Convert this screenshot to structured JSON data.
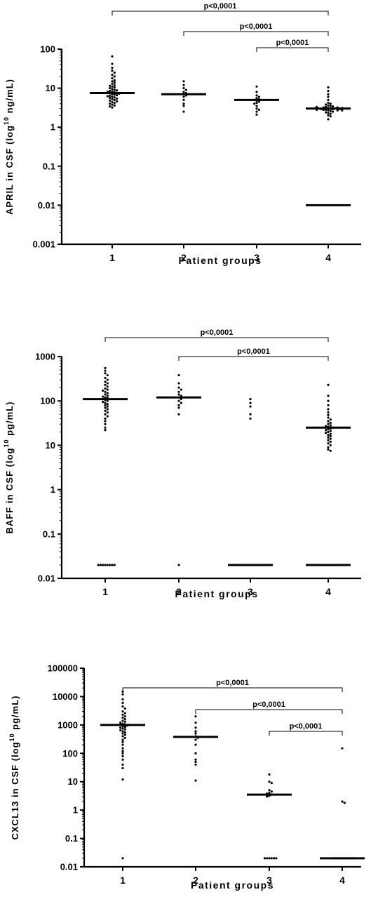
{
  "colors": {
    "ink": "#000000",
    "background": "#ffffff"
  },
  "chart_data": [
    {
      "type": "scatter",
      "title": "",
      "ylabel": "APRIL in CSF (log",
      "ylabel_sup": "10",
      "ylabel_unit": " ng/mL)",
      "xlabel": "Patient groups",
      "yscale": "log",
      "ylim": [
        0.001,
        100
      ],
      "yticks": [
        100,
        10,
        1,
        0.1,
        0.01,
        0.001
      ],
      "ytick_labels": [
        "100",
        "10",
        "1",
        "0.1",
        "0.01",
        "0.001"
      ],
      "categories": [
        "1",
        "2",
        "3",
        "4"
      ],
      "medians": [
        7.5,
        7,
        5,
        3
      ],
      "extra_lines": [
        {
          "group": 4,
          "value": 0.01
        }
      ],
      "groups": [
        {
          "name": "1",
          "values": [
            65,
            42,
            33,
            28,
            25,
            22,
            20,
            18,
            16,
            15,
            14,
            13,
            12,
            11.5,
            11,
            10.5,
            10,
            9.5,
            9,
            8.8,
            8.5,
            8.2,
            8,
            7.8,
            7.6,
            7.4,
            7.2,
            7,
            6.8,
            6.6,
            6.4,
            6.2,
            6,
            5.8,
            5.6,
            5.4,
            5.2,
            5,
            4.8,
            4.6,
            4.4,
            4.2,
            4,
            3.8,
            3.6,
            3.4,
            3.2
          ]
        },
        {
          "name": "2",
          "values": [
            15,
            12,
            10,
            9,
            8,
            7.5,
            7,
            6.5,
            6,
            5,
            4,
            3.5,
            2.5
          ]
        },
        {
          "name": "3",
          "values": [
            11,
            8,
            6.5,
            6,
            5.5,
            5.2,
            5,
            4.8,
            4.5,
            4.2,
            4,
            3.5,
            3,
            2.8,
            2.5,
            2.1
          ]
        },
        {
          "name": "4",
          "values": [
            10.5,
            8.5,
            7,
            6,
            5,
            4.2,
            4,
            3.8,
            3.6,
            3.5,
            3.4,
            3.3,
            3.2,
            3.1,
            3,
            3,
            2.9,
            2.9,
            2.8,
            2.8,
            2.7,
            2.7,
            2.6,
            2.5,
            2.4,
            2.3,
            2.2,
            2,
            1.9,
            1.6,
            3.2,
            3,
            2.9,
            2.8,
            2.7,
            3.1,
            3.3
          ]
        }
      ],
      "comparisons": [
        {
          "from": 1,
          "to": 4,
          "label": "p<0,0001"
        },
        {
          "from": 2,
          "to": 4,
          "label": "p<0,0001"
        },
        {
          "from": 3,
          "to": 4,
          "label": "p<0,0001"
        }
      ]
    },
    {
      "type": "scatter",
      "title": "",
      "ylabel": "BAFF in CSF (log",
      "ylabel_sup": "10",
      "ylabel_unit": " pg/mL)",
      "xlabel": "Patient groups",
      "yscale": "log",
      "ylim": [
        0.01,
        1000
      ],
      "yticks": [
        1000,
        100,
        10,
        1,
        0.1,
        0.01
      ],
      "ytick_labels": [
        "1000",
        "100",
        "10",
        "1",
        "0.1",
        "0.01"
      ],
      "categories": [
        "1",
        "2",
        "3",
        "4"
      ],
      "medians": [
        110,
        120,
        0.02,
        25
      ],
      "extra_lines": [
        {
          "group": 4,
          "value": 0.02
        }
      ],
      "groups": [
        {
          "name": "1",
          "values": [
            550,
            480,
            420,
            380,
            330,
            300,
            270,
            250,
            230,
            210,
            190,
            180,
            170,
            160,
            150,
            140,
            130,
            125,
            120,
            115,
            110,
            105,
            100,
            95,
            90,
            85,
            80,
            75,
            70,
            65,
            60,
            55,
            50,
            45,
            40,
            35,
            30,
            25,
            22,
            0.02,
            0.02,
            0.02,
            0.02,
            0.02,
            0.02,
            0.02,
            0.02
          ]
        },
        {
          "name": "2",
          "values": [
            380,
            250,
            200,
            180,
            160,
            140,
            130,
            120,
            110,
            100,
            90,
            80,
            70,
            50,
            0.02
          ]
        },
        {
          "name": "3",
          "values": [
            110,
            90,
            75,
            50,
            40,
            0.02,
            0.02,
            0.02,
            0.02,
            0.02,
            0.02,
            0.02,
            0.02
          ]
        },
        {
          "name": "4",
          "values": [
            230,
            130,
            100,
            80,
            65,
            55,
            48,
            42,
            38,
            35,
            32,
            30,
            28,
            27,
            26,
            25,
            24,
            23,
            22,
            21,
            20,
            19,
            18,
            17,
            16,
            15,
            14,
            13,
            12,
            11,
            10,
            9,
            8,
            7.5,
            0.02,
            0.02,
            0.02,
            0.02,
            0.02,
            0.02,
            0.02,
            0.02,
            0.02
          ]
        }
      ],
      "comparisons": [
        {
          "from": 1,
          "to": 4,
          "label": "p<0,0001"
        },
        {
          "from": 2,
          "to": 4,
          "label": "p<0,0001"
        }
      ]
    },
    {
      "type": "scatter",
      "title": "",
      "ylabel": "CXCL13 in CSF (log",
      "ylabel_sup": "10",
      "ylabel_unit": " pg/mL)",
      "xlabel": "Patient groups",
      "yscale": "log",
      "ylim": [
        0.01,
        100000
      ],
      "yticks": [
        100000,
        10000,
        1000,
        100,
        10,
        1,
        0.1,
        0.01
      ],
      "ytick_labels": [
        "100000",
        "10000",
        "1000",
        "100",
        "10",
        "1",
        "0.1",
        "0.01"
      ],
      "categories": [
        "1",
        "2",
        "3",
        "4"
      ],
      "medians": [
        1000,
        380,
        3.5,
        0.02
      ],
      "extra_lines": [],
      "groups": [
        {
          "name": "1",
          "values": [
            15000,
            12000,
            8000,
            6000,
            4500,
            3800,
            3000,
            2600,
            2300,
            2000,
            1800,
            1600,
            1400,
            1300,
            1200,
            1100,
            1050,
            1000,
            950,
            900,
            850,
            800,
            750,
            700,
            650,
            600,
            550,
            500,
            450,
            400,
            350,
            300,
            250,
            200,
            150,
            120,
            100,
            80,
            60,
            40,
            30,
            12,
            0.02
          ]
        },
        {
          "name": "2",
          "values": [
            2000,
            1200,
            800,
            600,
            500,
            400,
            350,
            300,
            200,
            100,
            60,
            50,
            40,
            11
          ]
        },
        {
          "name": "3",
          "values": [
            18,
            10,
            9,
            5,
            4.5,
            4,
            3.8,
            3.5,
            3.2,
            3,
            0.02,
            0.02,
            0.02,
            0.02,
            0.02,
            0.02
          ]
        },
        {
          "name": "4",
          "values": [
            150,
            2,
            1.8,
            0.02,
            0.02,
            0.02,
            0.02,
            0.02,
            0.02,
            0.02,
            0.02,
            0.02,
            0.02
          ]
        }
      ],
      "comparisons": [
        {
          "from": 1,
          "to": 4,
          "label": "p<0,0001"
        },
        {
          "from": 2,
          "to": 4,
          "label": "p<0,0001"
        },
        {
          "from": 3,
          "to": 4,
          "label": "p<0,0001"
        }
      ]
    }
  ]
}
